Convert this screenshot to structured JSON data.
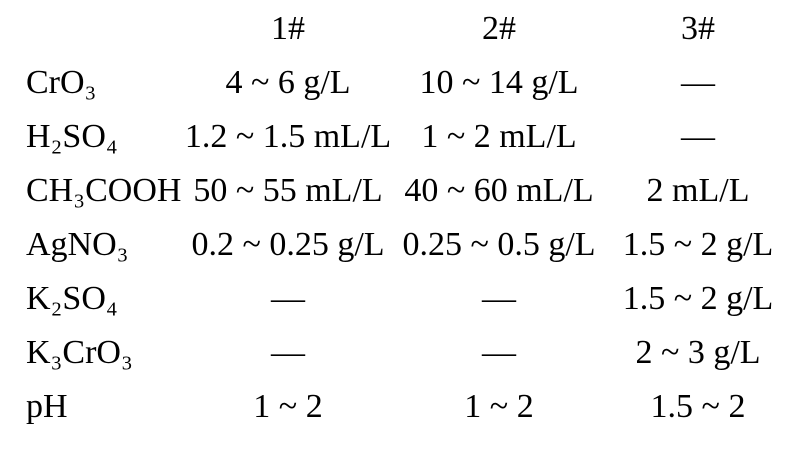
{
  "colors": {
    "background": "#ffffff",
    "text": "#000000"
  },
  "table": {
    "columns": [
      "",
      "1#",
      "2#",
      "3#"
    ],
    "empty_cell_mark": "—",
    "rows": [
      {
        "label": "CrO₃",
        "values": [
          "4 ~ 6 g/L",
          "10 ~ 14 g/L",
          "—"
        ]
      },
      {
        "label": "H₂SO₄",
        "values": [
          "1.2 ~ 1.5 mL/L",
          "1 ~ 2 mL/L",
          "—"
        ]
      },
      {
        "label": "CH₃COOH",
        "values": [
          "50 ~ 55 mL/L",
          "40 ~ 60 mL/L",
          "2 mL/L"
        ]
      },
      {
        "label": "AgNO₃",
        "values": [
          "0.2 ~ 0.25 g/L",
          "0.25 ~ 0.5 g/L",
          "1.5 ~ 2 g/L"
        ]
      },
      {
        "label": "K₂SO₄",
        "values": [
          "—",
          "—",
          "1.5 ~ 2 g/L"
        ]
      },
      {
        "label": "K₃CrO₃",
        "values": [
          "—",
          "—",
          "2 ~ 3 g/L"
        ]
      },
      {
        "label": "pH",
        "values": [
          "1 ~ 2",
          "1 ~ 2",
          "1.5 ~ 2"
        ]
      }
    ]
  }
}
